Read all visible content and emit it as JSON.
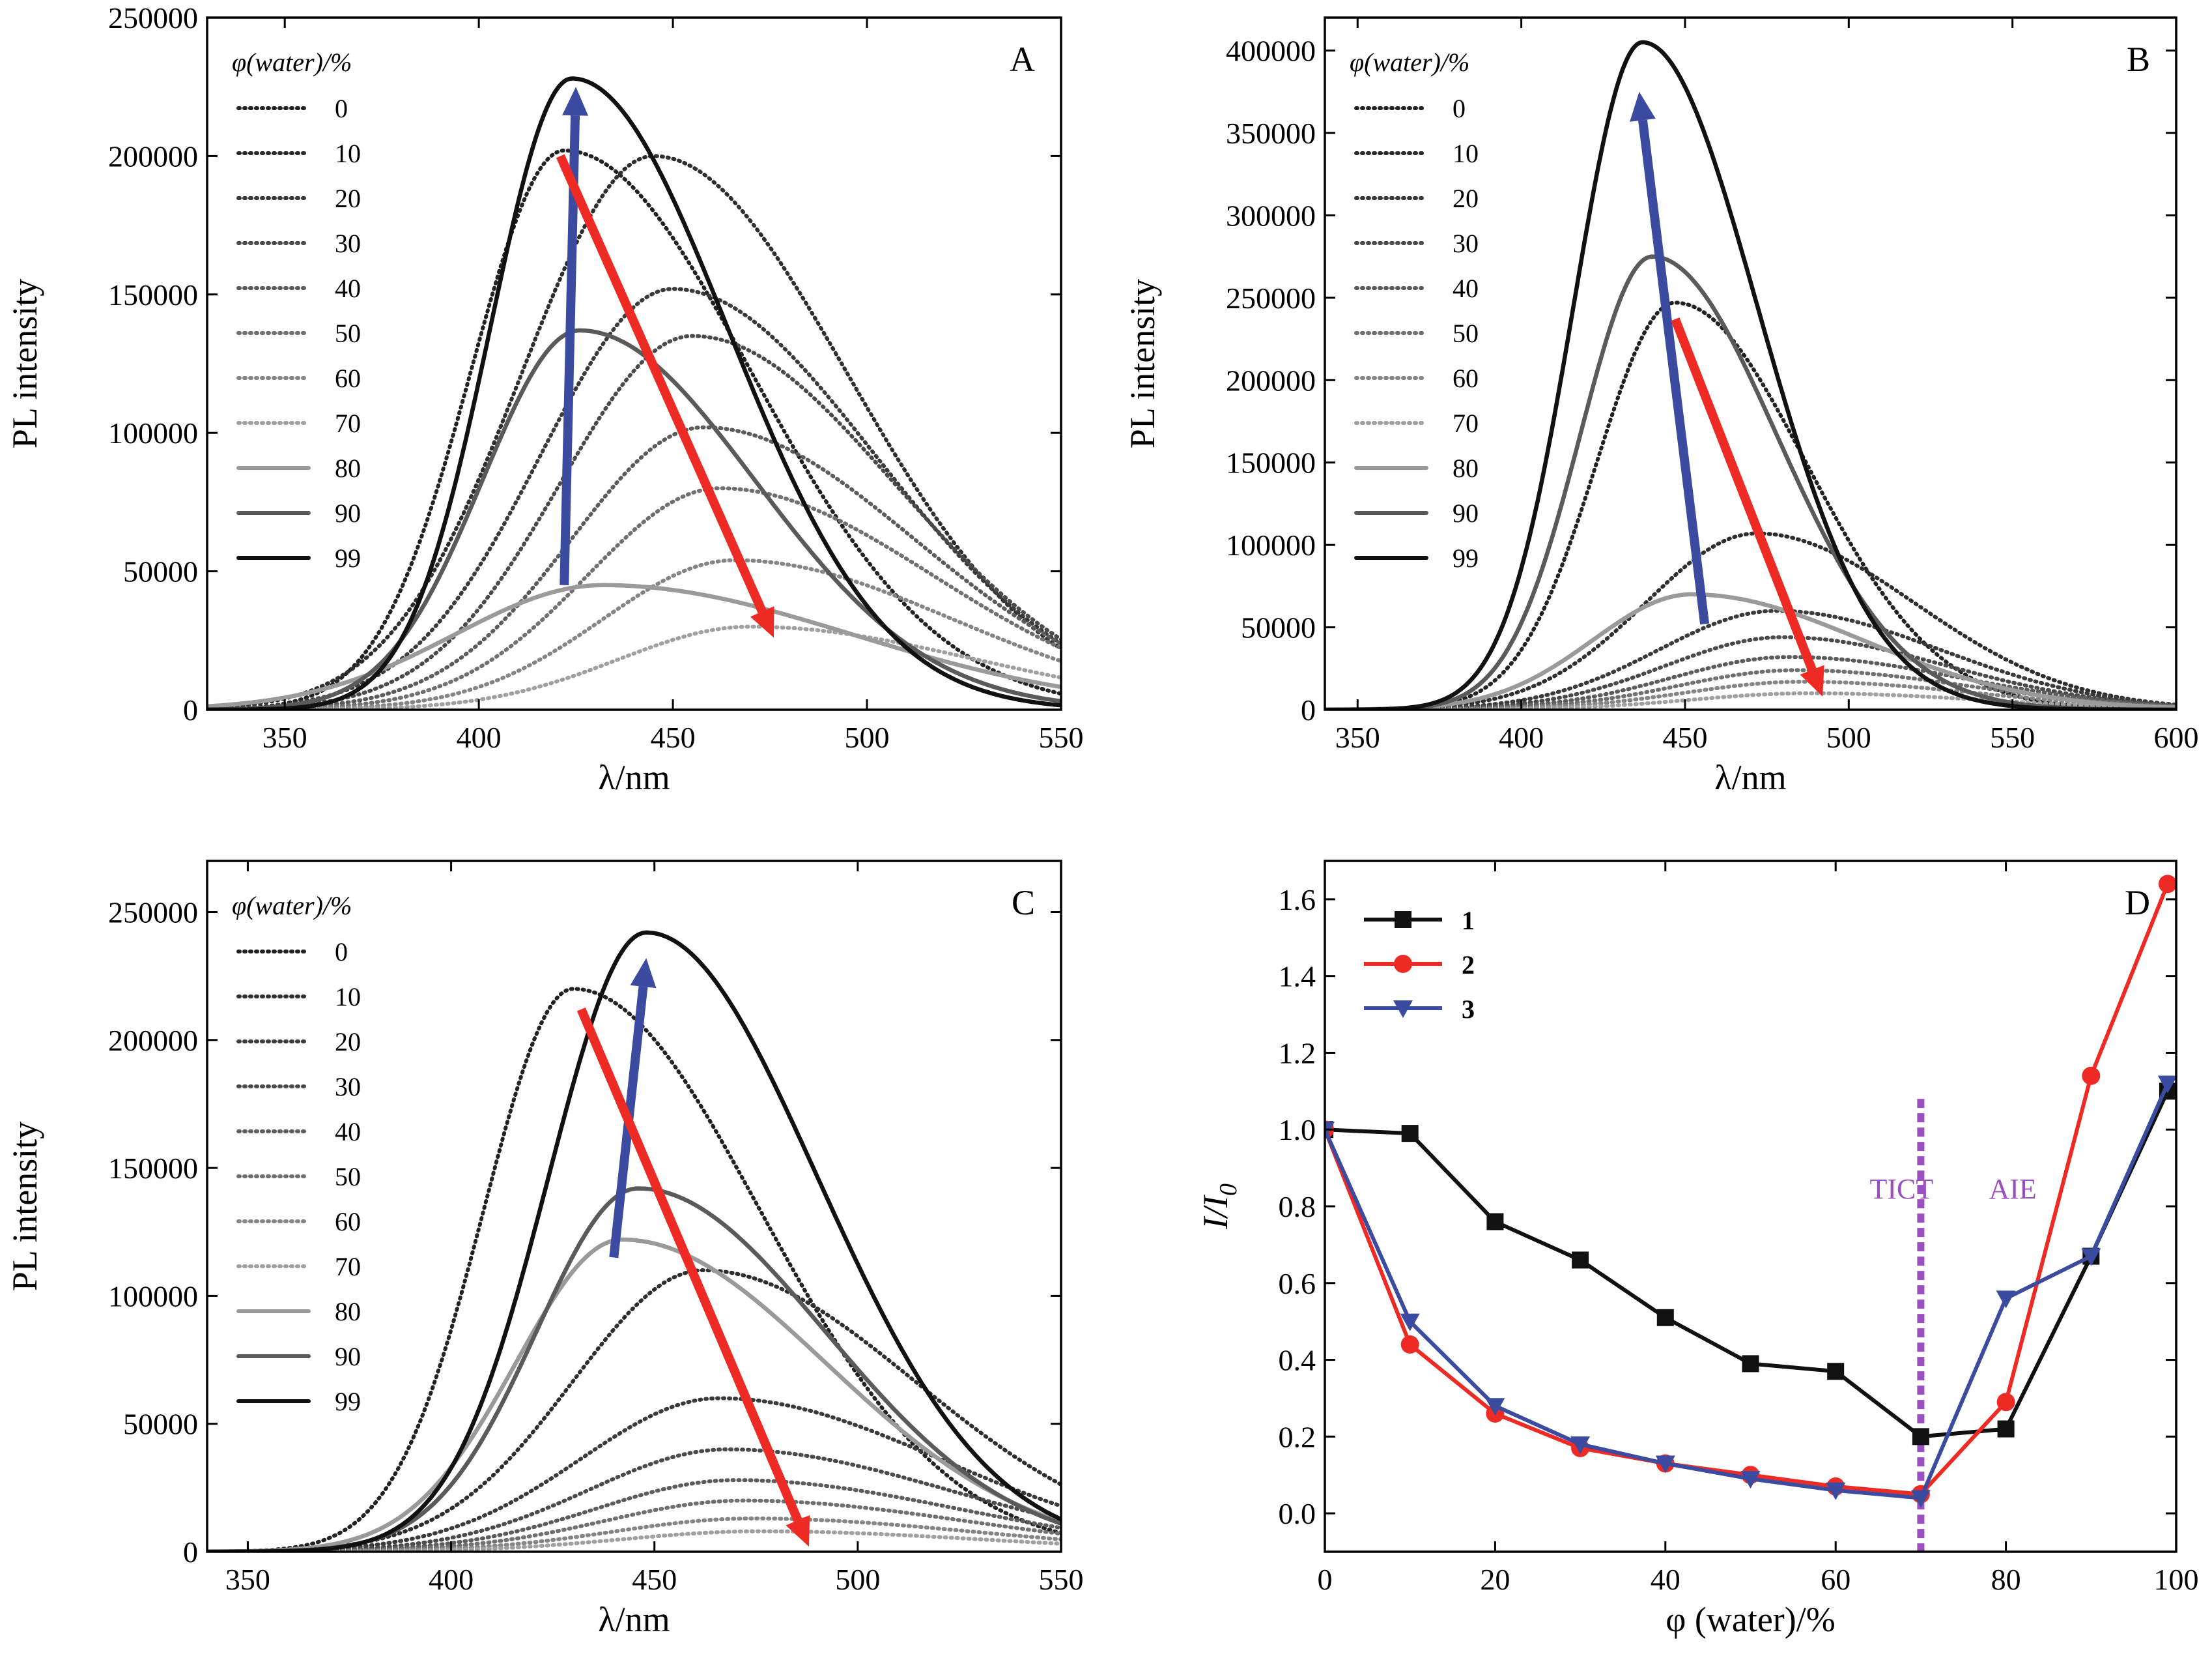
{
  "figure": {
    "legend_title": "φ(water)/%",
    "arrow_colors": {
      "blue": "#3b4ba0",
      "red": "#ee2a24"
    }
  },
  "chart_data": [
    {
      "id": "A",
      "type": "line",
      "panel_label": "A",
      "xlabel": "λ/nm",
      "ylabel": "PL intensity",
      "xlim": [
        330,
        550
      ],
      "ylim": [
        0,
        250000
      ],
      "xticks": [
        350,
        400,
        450,
        500,
        550
      ],
      "yticks": [
        0,
        50000,
        100000,
        150000,
        200000,
        250000
      ],
      "legend_position": "top-left",
      "series": [
        {
          "name": "0",
          "peak_x": 422,
          "peak_y": 202000,
          "sigma_left": 24,
          "sigma_right": 48,
          "style": "dotted",
          "color": "#222222"
        },
        {
          "name": "10",
          "peak_x": 445,
          "peak_y": 200000,
          "sigma_left": 34,
          "sigma_right": 50,
          "style": "dotted",
          "color": "#2e2e2e"
        },
        {
          "name": "20",
          "peak_x": 450,
          "peak_y": 152000,
          "sigma_left": 34,
          "sigma_right": 52,
          "style": "dotted",
          "color": "#3a3a3a"
        },
        {
          "name": "30",
          "peak_x": 455,
          "peak_y": 135000,
          "sigma_left": 34,
          "sigma_right": 52,
          "style": "dotted",
          "color": "#4a4a4a"
        },
        {
          "name": "40",
          "peak_x": 458,
          "peak_y": 102000,
          "sigma_left": 34,
          "sigma_right": 54,
          "style": "dotted",
          "color": "#5c5c5c"
        },
        {
          "name": "50",
          "peak_x": 462,
          "peak_y": 80000,
          "sigma_left": 34,
          "sigma_right": 55,
          "style": "dotted",
          "color": "#707070"
        },
        {
          "name": "60",
          "peak_x": 466,
          "peak_y": 54000,
          "sigma_left": 34,
          "sigma_right": 56,
          "style": "dotted",
          "color": "#858585"
        },
        {
          "name": "70",
          "peak_x": 470,
          "peak_y": 30000,
          "sigma_left": 34,
          "sigma_right": 58,
          "style": "dotted",
          "color": "#a0a0a0"
        },
        {
          "name": "80",
          "peak_x": 432,
          "peak_y": 45000,
          "sigma_left": 38,
          "sigma_right": 64,
          "style": "solid",
          "color": "#9a9a9a"
        },
        {
          "name": "90",
          "peak_x": 426,
          "peak_y": 137000,
          "sigma_left": 25,
          "sigma_right": 45,
          "style": "solid",
          "color": "#5a5a5a"
        },
        {
          "name": "99",
          "peak_x": 424,
          "peak_y": 228000,
          "sigma_left": 21,
          "sigma_right": 40,
          "style": "solid",
          "color": "#111111"
        }
      ],
      "arrows": [
        {
          "color": "blue",
          "from": [
            422,
            45000
          ],
          "to": [
            425,
            225000
          ]
        },
        {
          "color": "red",
          "from": [
            421,
            200000
          ],
          "to": [
            476,
            26000
          ]
        }
      ]
    },
    {
      "id": "B",
      "type": "line",
      "panel_label": "B",
      "xlabel": "λ/nm",
      "ylabel": "PL intensity",
      "xlim": [
        340,
        600
      ],
      "ylim": [
        0,
        420000
      ],
      "xticks": [
        350,
        400,
        450,
        500,
        550,
        600
      ],
      "yticks": [
        0,
        50000,
        100000,
        150000,
        200000,
        250000,
        300000,
        350000,
        400000
      ],
      "legend_position": "top-left",
      "series": [
        {
          "name": "0",
          "peak_x": 447,
          "peak_y": 247000,
          "sigma_left": 24,
          "sigma_right": 40,
          "style": "dotted",
          "color": "#222222"
        },
        {
          "name": "10",
          "peak_x": 472,
          "peak_y": 107000,
          "sigma_left": 34,
          "sigma_right": 48,
          "style": "dotted",
          "color": "#2e2e2e"
        },
        {
          "name": "20",
          "peak_x": 478,
          "peak_y": 60000,
          "sigma_left": 36,
          "sigma_right": 50,
          "style": "dotted",
          "color": "#3a3a3a"
        },
        {
          "name": "30",
          "peak_x": 480,
          "peak_y": 44000,
          "sigma_left": 36,
          "sigma_right": 50,
          "style": "dotted",
          "color": "#4a4a4a"
        },
        {
          "name": "40",
          "peak_x": 482,
          "peak_y": 32000,
          "sigma_left": 36,
          "sigma_right": 52,
          "style": "dotted",
          "color": "#5c5c5c"
        },
        {
          "name": "50",
          "peak_x": 484,
          "peak_y": 24000,
          "sigma_left": 36,
          "sigma_right": 52,
          "style": "dotted",
          "color": "#707070"
        },
        {
          "name": "60",
          "peak_x": 486,
          "peak_y": 17000,
          "sigma_left": 36,
          "sigma_right": 52,
          "style": "dotted",
          "color": "#858585"
        },
        {
          "name": "70",
          "peak_x": 488,
          "peak_y": 10000,
          "sigma_left": 36,
          "sigma_right": 52,
          "style": "dotted",
          "color": "#a0a0a0"
        },
        {
          "name": "80",
          "peak_x": 452,
          "peak_y": 70000,
          "sigma_left": 30,
          "sigma_right": 52,
          "style": "solid",
          "color": "#9a9a9a"
        },
        {
          "name": "90",
          "peak_x": 440,
          "peak_y": 275000,
          "sigma_left": 22,
          "sigma_right": 38,
          "style": "solid",
          "color": "#5a5a5a"
        },
        {
          "name": "99",
          "peak_x": 437,
          "peak_y": 405000,
          "sigma_left": 21,
          "sigma_right": 35,
          "style": "solid",
          "color": "#111111"
        }
      ],
      "arrows": [
        {
          "color": "blue",
          "from": [
            456,
            52000
          ],
          "to": [
            436,
            375000
          ]
        },
        {
          "color": "red",
          "from": [
            447,
            237000
          ],
          "to": [
            492,
            8000
          ]
        }
      ]
    },
    {
      "id": "C",
      "type": "line",
      "panel_label": "C",
      "xlabel": "λ/nm",
      "ylabel": "PL intensity",
      "xlim": [
        340,
        550
      ],
      "ylim": [
        0,
        270000
      ],
      "xticks": [
        350,
        400,
        450,
        500,
        550
      ],
      "yticks": [
        0,
        50000,
        100000,
        150000,
        200000,
        250000
      ],
      "legend_position": "top-left",
      "series": [
        {
          "name": "0",
          "peak_x": 430,
          "peak_y": 220000,
          "sigma_left": 22,
          "sigma_right": 46,
          "style": "dotted",
          "color": "#222222"
        },
        {
          "name": "10",
          "peak_x": 462,
          "peak_y": 110000,
          "sigma_left": 32,
          "sigma_right": 52,
          "style": "dotted",
          "color": "#2e2e2e"
        },
        {
          "name": "20",
          "peak_x": 466,
          "peak_y": 60000,
          "sigma_left": 34,
          "sigma_right": 54,
          "style": "dotted",
          "color": "#3a3a3a"
        },
        {
          "name": "30",
          "peak_x": 468,
          "peak_y": 40000,
          "sigma_left": 34,
          "sigma_right": 54,
          "style": "dotted",
          "color": "#4a4a4a"
        },
        {
          "name": "40",
          "peak_x": 470,
          "peak_y": 28000,
          "sigma_left": 34,
          "sigma_right": 54,
          "style": "dotted",
          "color": "#5c5c5c"
        },
        {
          "name": "50",
          "peak_x": 472,
          "peak_y": 20000,
          "sigma_left": 34,
          "sigma_right": 54,
          "style": "dotted",
          "color": "#707070"
        },
        {
          "name": "60",
          "peak_x": 474,
          "peak_y": 13000,
          "sigma_left": 34,
          "sigma_right": 54,
          "style": "dotted",
          "color": "#858585"
        },
        {
          "name": "70",
          "peak_x": 476,
          "peak_y": 8000,
          "sigma_left": 34,
          "sigma_right": 54,
          "style": "dotted",
          "color": "#a0a0a0"
        },
        {
          "name": "80",
          "peak_x": 442,
          "peak_y": 122000,
          "sigma_left": 26,
          "sigma_right": 50,
          "style": "solid",
          "color": "#9a9a9a"
        },
        {
          "name": "90",
          "peak_x": 446,
          "peak_y": 142000,
          "sigma_left": 25,
          "sigma_right": 46,
          "style": "solid",
          "color": "#5a5a5a"
        },
        {
          "name": "99",
          "peak_x": 448,
          "peak_y": 242000,
          "sigma_left": 24,
          "sigma_right": 42,
          "style": "solid",
          "color": "#111111"
        }
      ],
      "arrows": [
        {
          "color": "blue",
          "from": [
            440,
            115000
          ],
          "to": [
            448,
            232000
          ]
        },
        {
          "color": "red",
          "from": [
            432,
            212000
          ],
          "to": [
            488,
            2000
          ]
        }
      ]
    },
    {
      "id": "D",
      "type": "line",
      "panel_label": "D",
      "xlabel": "φ (water)/%",
      "ylabel": "I/I0",
      "ylabel_main": "I/I",
      "ylabel_sub": "0",
      "xlim": [
        0,
        100
      ],
      "ylim": [
        -0.1,
        1.7
      ],
      "xticks": [
        0,
        20,
        40,
        60,
        80,
        100
      ],
      "yticks": [
        0.0,
        0.2,
        0.4,
        0.6,
        0.8,
        1.0,
        1.2,
        1.4,
        1.6
      ],
      "legend_position": "top-left",
      "x": [
        0,
        10,
        20,
        30,
        40,
        50,
        60,
        70,
        80,
        90,
        99
      ],
      "series": [
        {
          "name": "1",
          "color": "#111111",
          "marker": "square",
          "values": [
            1.0,
            0.99,
            0.76,
            0.66,
            0.51,
            0.39,
            0.37,
            0.2,
            0.22,
            0.67,
            1.1
          ]
        },
        {
          "name": "2",
          "color": "#ee2a24",
          "marker": "circle",
          "values": [
            1.0,
            0.44,
            0.26,
            0.17,
            0.13,
            0.1,
            0.07,
            0.05,
            0.29,
            1.14,
            1.64
          ]
        },
        {
          "name": "3",
          "color": "#3b4ba0",
          "marker": "triangle",
          "values": [
            1.0,
            0.5,
            0.28,
            0.18,
            0.13,
            0.09,
            0.06,
            0.04,
            0.56,
            0.67,
            1.12
          ]
        }
      ],
      "divider": {
        "x": 70,
        "color": "#9b4fc0"
      },
      "annotations": [
        {
          "text": "TICT",
          "x": 64,
          "y": 0.82,
          "color": "#9b4fc0"
        },
        {
          "text": "AIE",
          "x": 78,
          "y": 0.82,
          "color": "#9b4fc0"
        }
      ]
    }
  ]
}
